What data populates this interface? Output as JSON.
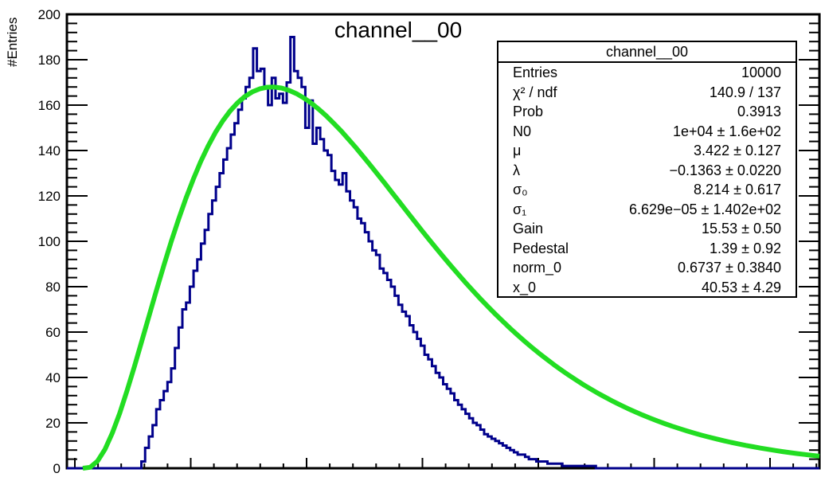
{
  "chart_data": {
    "type": "histogram",
    "title": "channel__00",
    "xlabel": "",
    "ylabel": "#Entries",
    "ylim": [
      0,
      200
    ],
    "yticks": [
      0,
      20,
      40,
      60,
      80,
      100,
      120,
      140,
      160,
      180,
      200
    ],
    "grid": false,
    "legend": "none",
    "stats_box_position": "top-right",
    "histogram": {
      "color": "#00008b",
      "bins": 200,
      "values": [
        0,
        0,
        0,
        0,
        0,
        0,
        0,
        0,
        0,
        0,
        0,
        0,
        0,
        0,
        0,
        0,
        0,
        0,
        0,
        0,
        3,
        9,
        14,
        19,
        26,
        30,
        34,
        38,
        44,
        53,
        62,
        70,
        73,
        80,
        87,
        92,
        99,
        105,
        112,
        118,
        124,
        130,
        136,
        141,
        147,
        152,
        158,
        163,
        168,
        172,
        185,
        175,
        176,
        168,
        160,
        172,
        163,
        165,
        161,
        170,
        190,
        175,
        172,
        168,
        150,
        162,
        143,
        150,
        145,
        140,
        138,
        131,
        127,
        125,
        130,
        122,
        118,
        115,
        110,
        108,
        104,
        100,
        96,
        94,
        88,
        86,
        83,
        80,
        76,
        72,
        69,
        67,
        63,
        60,
        57,
        54,
        50,
        48,
        45,
        42,
        40,
        37,
        35,
        33,
        30,
        28,
        26,
        24,
        22,
        20,
        19,
        17,
        15,
        14,
        13,
        12,
        11,
        10,
        9,
        8,
        7,
        6,
        6,
        5,
        4,
        4,
        3,
        3,
        3,
        2,
        2,
        2,
        2,
        1,
        1,
        1,
        1,
        1,
        1,
        1,
        1,
        1,
        0,
        0,
        0,
        0,
        0,
        0,
        0,
        0,
        0,
        0,
        0,
        0,
        0,
        0,
        0,
        0,
        0,
        0,
        0,
        0,
        0,
        0,
        0,
        0,
        0,
        0,
        0,
        0,
        0,
        0,
        0,
        0,
        0,
        0,
        0,
        0,
        0,
        0,
        0,
        0,
        0,
        0,
        0,
        0,
        0,
        0,
        0,
        0,
        0,
        0,
        0,
        0,
        0,
        0,
        0,
        0,
        0,
        0,
        0,
        0
      ]
    },
    "fit": {
      "color": "#22dd22",
      "points": 101
    },
    "stats": {
      "title": "channel__00",
      "rows": [
        {
          "key": "Entries",
          "value": "10000"
        },
        {
          "key": "χ² / ndf",
          "value": "140.9 / 137"
        },
        {
          "key": "Prob",
          "value": "0.3913"
        },
        {
          "key": "N0",
          "value": "1e+04 ± 1.6e+02"
        },
        {
          "key": "μ",
          "value": "3.422 ± 0.127"
        },
        {
          "key": "λ",
          "value": "−0.1363 ± 0.0220"
        },
        {
          "key": "σ₀",
          "value": "8.214 ± 0.617"
        },
        {
          "key": "σ₁",
          "value": "6.629e−05 ± 1.402e+02"
        },
        {
          "key": "Gain",
          "value": "15.53 ± 0.50"
        },
        {
          "key": "Pedestal",
          "value": "1.39 ± 0.92"
        },
        {
          "key": "norm_0",
          "value": "0.6737 ± 0.3840"
        },
        {
          "key": "x_0",
          "value": "40.53 ± 4.29"
        }
      ]
    }
  }
}
